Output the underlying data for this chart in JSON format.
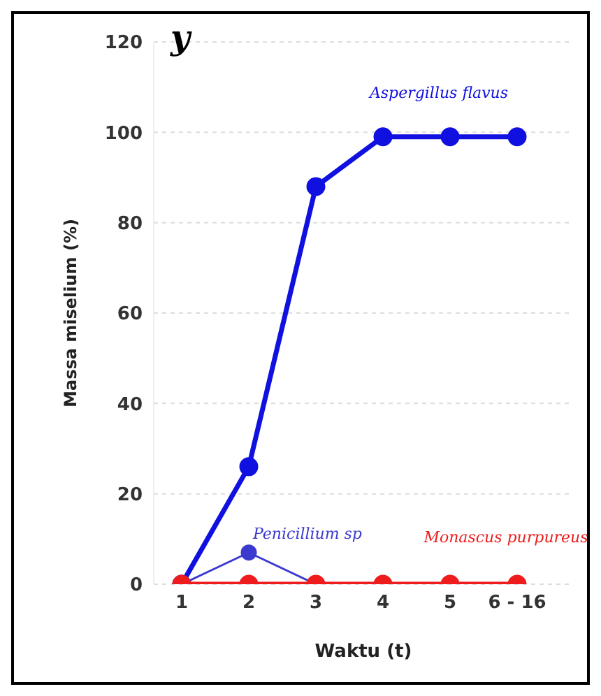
{
  "chart_data": {
    "type": "line",
    "xlabel": "Waktu (t)",
    "ylabel": "Massa miselium (%)",
    "annotations": [
      "y"
    ],
    "categories": [
      "1",
      "2",
      "3",
      "4",
      "5",
      "6 - 16"
    ],
    "series": [
      {
        "name": "Aspergillus flavus",
        "color": "#1010e0",
        "values": [
          0,
          26,
          88,
          99,
          99,
          99
        ]
      },
      {
        "name": "Penicillium sp",
        "color": "#3a3ad0",
        "values": [
          0,
          7,
          0,
          null,
          null,
          null
        ]
      },
      {
        "name": "Monascus purpureus",
        "color": "#ee1c1c",
        "values": [
          0,
          0,
          0,
          0,
          0,
          0
        ]
      }
    ],
    "ylim": [
      0,
      120
    ],
    "yticks": [
      0,
      20,
      40,
      60,
      80,
      100,
      120
    ],
    "grid": "y",
    "marker": "circle",
    "line_style": "solid"
  }
}
